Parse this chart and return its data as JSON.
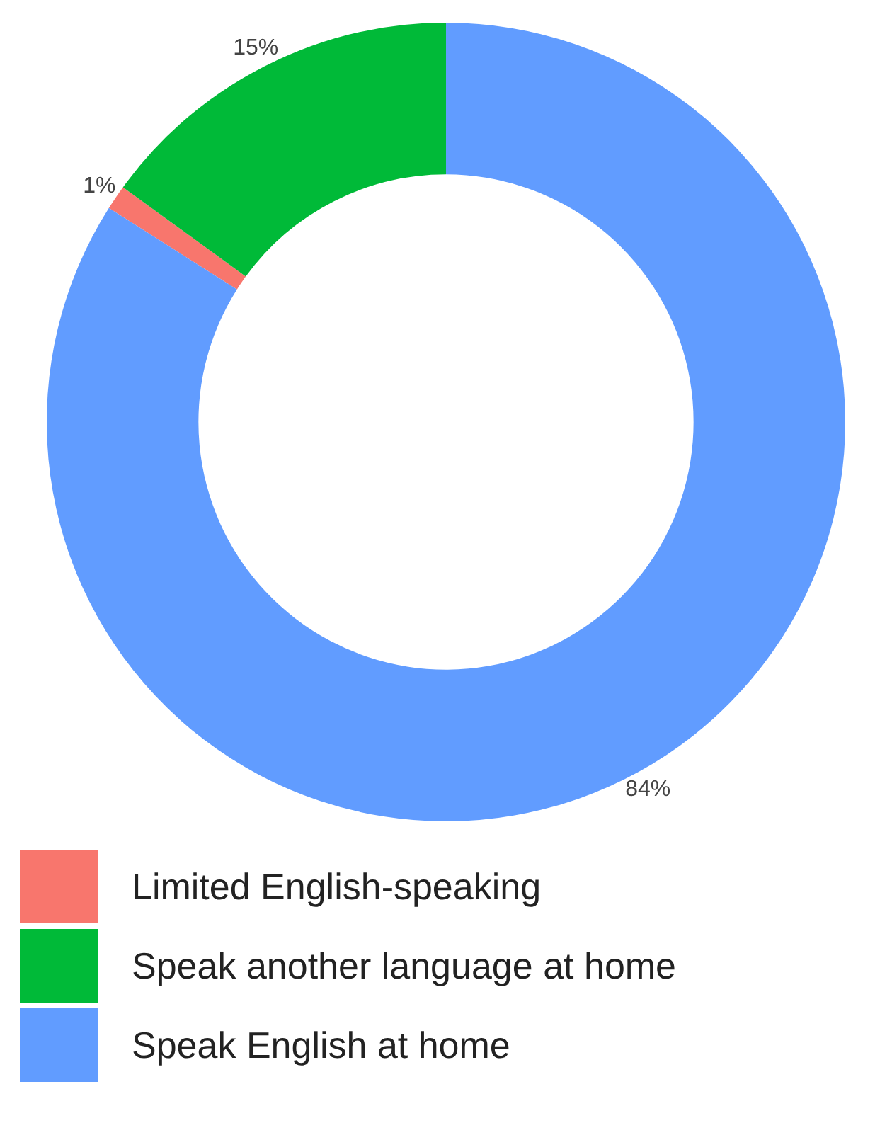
{
  "chart_data": {
    "type": "donut",
    "categories": [
      "Limited English-speaking",
      "Speak another language at home",
      "Speak English at home"
    ],
    "values": [
      1,
      15,
      84
    ],
    "colors": [
      "#f8766d",
      "#00ba38",
      "#619cff"
    ],
    "value_labels": [
      "1%",
      "15%",
      "84%"
    ],
    "legend": "bottom"
  }
}
